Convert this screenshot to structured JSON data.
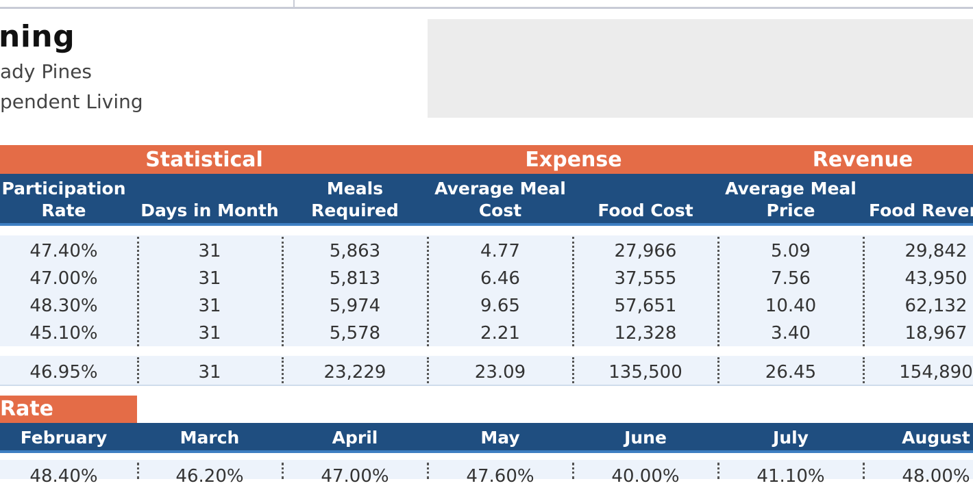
{
  "header": {
    "title": "ning",
    "subtitle1": "ady Pines",
    "subtitle2": "pendent Living"
  },
  "bands": {
    "statistical": "Statistical",
    "expense": "Expense",
    "revenue": "Revenue"
  },
  "columns": [
    {
      "line1": "Participation",
      "line2": "Rate"
    },
    {
      "line1": "",
      "line2": "Days in Month"
    },
    {
      "line1": "Meals",
      "line2": "Required"
    },
    {
      "line1": "Average Meal",
      "line2": "Cost"
    },
    {
      "line1": "",
      "line2": "Food Cost"
    },
    {
      "line1": "Average Meal",
      "line2": "Price"
    },
    {
      "line1": "",
      "line2": "Food Rever"
    }
  ],
  "rows": [
    [
      "47.40%",
      "31",
      "5,863",
      "4.77",
      "27,966",
      "5.09",
      "29,842"
    ],
    [
      "47.00%",
      "31",
      "5,813",
      "6.46",
      "37,555",
      "7.56",
      "43,950"
    ],
    [
      "48.30%",
      "31",
      "5,974",
      "9.65",
      "57,651",
      "10.40",
      "62,132"
    ],
    [
      "45.10%",
      "31",
      "5,578",
      "2.21",
      "12,328",
      "3.40",
      "18,967"
    ]
  ],
  "total": [
    "46.95%",
    "31",
    "23,229",
    "23.09",
    "135,500",
    "26.45",
    "154,890"
  ],
  "rate_section": {
    "label": "Rate",
    "months": [
      "February",
      "March",
      "April",
      "May",
      "June",
      "July",
      "August"
    ],
    "values": [
      "48.40%",
      "46.20%",
      "47.00%",
      "47.60%",
      "40.00%",
      "41.10%",
      "48.00%"
    ]
  },
  "colors": {
    "accent_orange": "#e46c47",
    "header_navy": "#1f4e80",
    "row_fill": "#edf3fb"
  }
}
